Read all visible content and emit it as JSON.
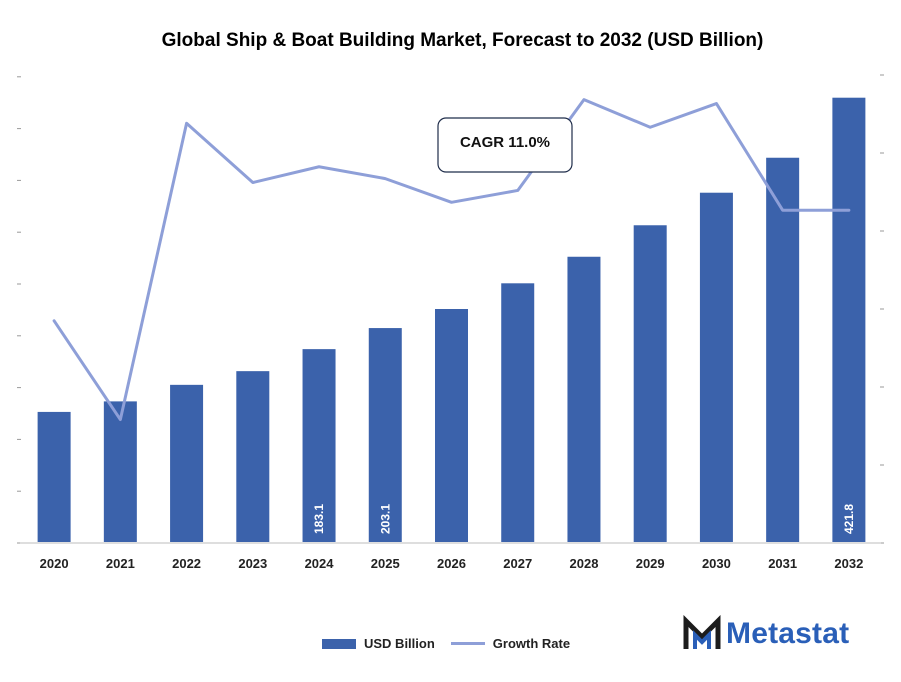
{
  "chart_data": {
    "type": "bar",
    "title": "Global Ship & Boat Building Market, Forecast to 2032 (USD Billion)",
    "categories": [
      "2020",
      "2021",
      "2022",
      "2023",
      "2024",
      "2025",
      "2026",
      "2027",
      "2028",
      "2029",
      "2030",
      "2031",
      "2032"
    ],
    "series": [
      {
        "name": "USD Billion",
        "type": "bar",
        "values": [
          123.5,
          133.5,
          149.2,
          162.2,
          183.1,
          203.1,
          221.2,
          245.6,
          270.8,
          300.7,
          331.6,
          364.8,
          421.8
        ],
        "color": "#3b62ab"
      },
      {
        "name": "Growth Rate",
        "type": "line",
        "values": [
          10.6,
          8.1,
          15.6,
          14.1,
          14.5,
          14.2,
          13.6,
          13.9,
          16.2,
          15.5,
          16.1,
          13.4,
          13.4
        ],
        "color": "#8e9fd8"
      }
    ],
    "data_labels": [
      {
        "category": "2024",
        "text": "183.1"
      },
      {
        "category": "2025",
        "text": "203.1"
      },
      {
        "category": "2032",
        "text": "421.8"
      }
    ],
    "annotation": "CAGR 11.0%",
    "ylim": [
      0,
      450
    ],
    "y2lim": [
      5,
      17
    ],
    "grid": false,
    "legend": "bottom"
  },
  "brand": {
    "name": "Metastat",
    "color": "#2a5fb8",
    "icon": "metastat-logo-icon"
  }
}
